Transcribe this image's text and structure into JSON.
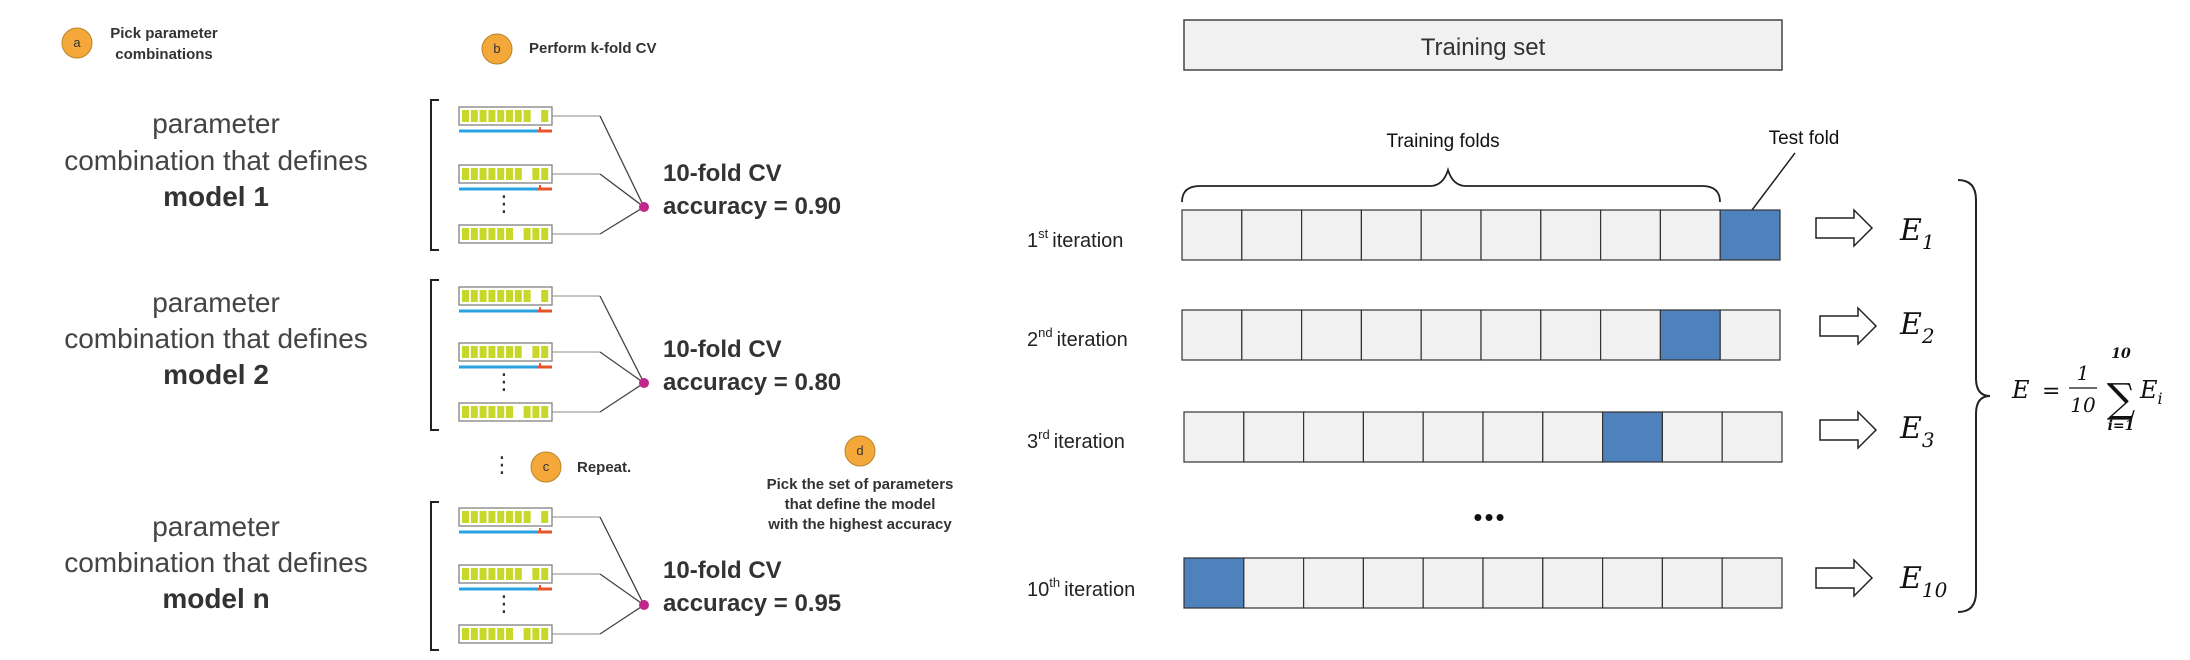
{
  "steps": {
    "a": {
      "badge": "a",
      "label_line1": "Pick parameter",
      "label_line2": "combinations"
    },
    "b": {
      "badge": "b",
      "label": "Perform k-fold CV"
    },
    "c": {
      "badge": "c",
      "label": "Repeat."
    },
    "d": {
      "badge": "d",
      "label_line1": "Pick the set of parameters",
      "label_line2": "that define the model",
      "label_line3": "with the highest accuracy"
    }
  },
  "models": [
    {
      "line1": "parameter",
      "line2": "combination that defines",
      "line3": "model 1",
      "cv_label": "10-fold CV",
      "accuracy_text": "accuracy = 0.90",
      "accuracy": 0.9
    },
    {
      "line1": "parameter",
      "line2": "combination that defines",
      "line3": "model 2",
      "cv_label": "10-fold CV",
      "accuracy_text": "accuracy = 0.80",
      "accuracy": 0.8
    },
    {
      "line1": "parameter",
      "line2": "combination that defines",
      "line3": "model n",
      "cv_label": "10-fold CV",
      "accuracy_text": "accuracy = 0.95",
      "accuracy": 0.95
    }
  ],
  "kfold": {
    "training_set_label": "Training set",
    "training_folds_label": "Training folds",
    "test_fold_label": "Test fold",
    "num_folds": 10,
    "ellipsis": "•••",
    "iterations": [
      {
        "num": "1",
        "sup": "st",
        "word": "iteration",
        "test_index": 9,
        "e_letter": "E",
        "e_sub": "1"
      },
      {
        "num": "2",
        "sup": "nd",
        "word": "iteration",
        "test_index": 8,
        "e_letter": "E",
        "e_sub": "2"
      },
      {
        "num": "3",
        "sup": "rd",
        "word": "iteration",
        "test_index": 7,
        "e_letter": "E",
        "e_sub": "3"
      },
      {
        "num": "10",
        "sup": "th",
        "word": "iteration",
        "test_index": 0,
        "e_letter": "E",
        "e_sub": "10"
      }
    ],
    "formula": {
      "lhs": "E",
      "equals": "=",
      "numerator": "1",
      "denominator": "10",
      "sum_top": "10",
      "sum_bottom": "i=1",
      "sigma": "∑",
      "term": "E",
      "term_sub": "i"
    }
  },
  "colors": {
    "badge": "#f5a83a",
    "fold_fill": "#f1f1f1",
    "test_fold": "#4f81bd",
    "mini_green": "#c8d82a",
    "mini_blue": "#29a3e0",
    "mini_red": "#e8542a",
    "dot": "#c0278a"
  }
}
